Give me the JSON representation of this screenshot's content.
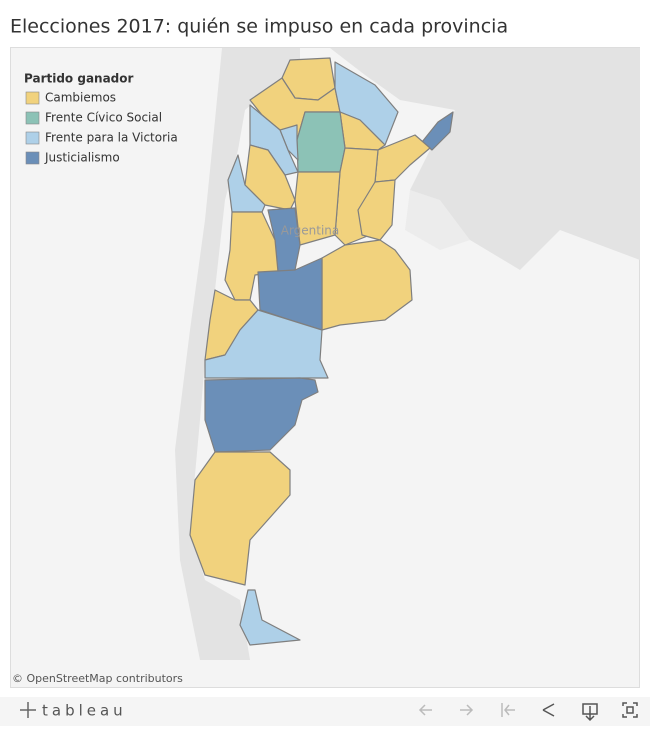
{
  "header": {
    "title": "Elecciones 2017: quién se impuso en cada provincia"
  },
  "legend": {
    "title": "Partido ganador",
    "items": [
      {
        "label": "Cambiemos",
        "color": "#f1d27d"
      },
      {
        "label": "Frente Cívico Social",
        "color": "#8cc2b6"
      },
      {
        "label": "Frente para la Victoria",
        "color": "#aed0e8"
      },
      {
        "label": "Justicialismo",
        "color": "#6b8fb8"
      }
    ]
  },
  "map": {
    "label": "Argentina",
    "attribution": "© OpenStreetMap contributors"
  },
  "footer": {
    "logo": "tableau"
  }
}
